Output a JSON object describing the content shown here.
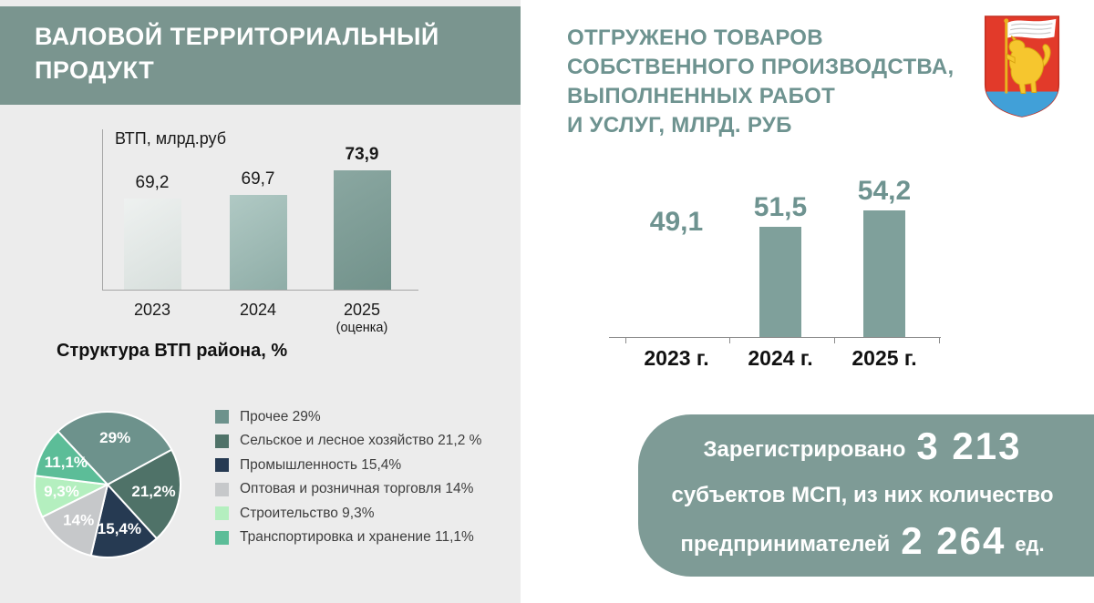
{
  "left_panel": {
    "title": "ВАЛОВОЙ ТЕРРИТОРИАЛЬНЫЙ ПРОДУКТ",
    "chart_title": "ВТП, млрд.руб",
    "pie_section_title": "Структура ВТП района, %",
    "legend": [
      "Прочее 29%",
      "Сельское и лесное хозяйство 21,2 %",
      "Промышленность 15,4%",
      "Оптовая и розничная торговля 14%",
      "Строительство 9,3%",
      "Транспортировка и хранение 11,1%"
    ]
  },
  "right_panel": {
    "title": "ОТГРУЖЕНО ТОВАРОВ\nСОБСТВЕННОГО ПРОИЗВОДСТВА,\nВЫПОЛНЕННЫХ РАБОТ\nИ УСЛУГ, МЛРД. РУБ",
    "emblem_icon": "coat-of-arms-red-shield-gold-lion-white-flag",
    "info_box": {
      "registered_label": "Зарегистрировано",
      "registered_value": "3 213",
      "middle_line": "субъектов МСП, из них количество",
      "entrepreneurs_label": "предпринимателей",
      "entrepreneurs_value": "2 264",
      "unit_label": "ед."
    }
  },
  "colors": {
    "header_bg": "#7a958f",
    "panel_bg": "#ececec",
    "right_title_teal": "#6e9390",
    "info_box_bg": "#7e9b96",
    "right_bar": "#7fa09b"
  },
  "chart_data": [
    {
      "id": "vtp_bars",
      "type": "bar",
      "title": "ВТП, млрд.руб",
      "categories": [
        "2023",
        "2024",
        "2025"
      ],
      "category_notes": [
        "",
        "",
        "(оценка)"
      ],
      "values": [
        69.2,
        69.7,
        73.9
      ],
      "labels": [
        "69,2",
        "69,7",
        "73,9"
      ],
      "emphasis": [
        false,
        false,
        true
      ],
      "ylim": [
        53.5,
        81
      ],
      "bar_gradients": [
        [
          "#eef1f0",
          "#d7dfdc"
        ],
        [
          "#b0c9c4",
          "#8fada7"
        ],
        [
          "#8aa7a1",
          "#72928b"
        ]
      ],
      "grid": false,
      "legend": "none"
    },
    {
      "id": "shipped_bars",
      "type": "bar",
      "title": "ОТГРУЖЕНО ТОВАРОВ СОБСТВЕННОГО ПРОИЗВОДСТВА, ВЫПОЛНЕННЫХ РАБОТ И УСЛУГ, МЛРД. РУБ",
      "categories": [
        "2023 г.",
        "2024 г.",
        "2025 г."
      ],
      "values": [
        49.1,
        51.5,
        54.2
      ],
      "labels": [
        "49,1",
        "51,5",
        "54,2"
      ],
      "bar_visible": [
        false,
        true,
        true
      ],
      "ylim": [
        33.5,
        62
      ],
      "bar_color": "#7fa09b",
      "grid": false,
      "legend": "none"
    },
    {
      "id": "vtp_structure_pie",
      "type": "pie",
      "title": "Структура ВТП района, %",
      "start_angle": -43,
      "slices": [
        {
          "label": "Прочее",
          "value": 29,
          "display": "29%",
          "color": "#6d928c"
        },
        {
          "label": "Сельское и лесное хозяйство",
          "value": 21.2,
          "display": "21,2%",
          "color": "#4f7268"
        },
        {
          "label": "Промышленность",
          "value": 15.4,
          "display": "15,4%",
          "color": "#263a52"
        },
        {
          "label": "Оптовая и розничная торговля",
          "value": 14,
          "display": "14%",
          "color": "#c6c8ca"
        },
        {
          "label": "Строительство",
          "value": 9.3,
          "display": "9,3%",
          "color": "#b4efbf"
        },
        {
          "label": "Транспортировка и хранение",
          "value": 11.1,
          "display": "11,1%",
          "color": "#5cbd98"
        }
      ]
    }
  ]
}
